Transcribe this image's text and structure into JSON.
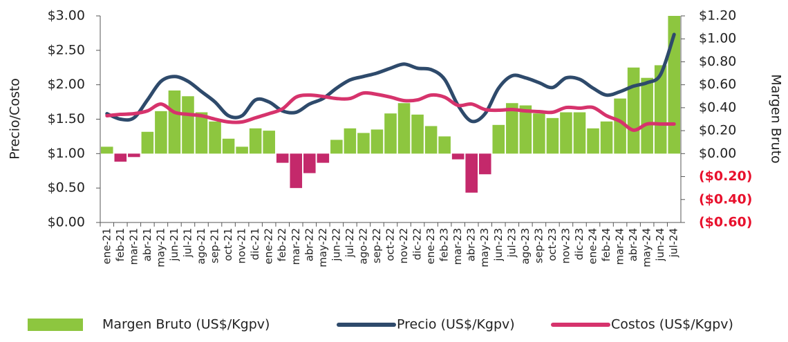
{
  "chart_data": {
    "type": "combo",
    "y_label": "Precio/Costo",
    "y2_label": "Margen Bruto",
    "categories": [
      "ene-21",
      "feb-21",
      "mar-21",
      "abr-21",
      "may-21",
      "jun-21",
      "jul-21",
      "ago-21",
      "sep-21",
      "oct-21",
      "nov-21",
      "dic-21",
      "ene-22",
      "feb-22",
      "mar-22",
      "abr-22",
      "may-22",
      "jun-22",
      "jul-22",
      "ago-22",
      "sep-22",
      "oct-22",
      "nov-22",
      "dic-22",
      "ene-23",
      "feb-23",
      "mar-23",
      "abr-23",
      "may-23",
      "jun-23",
      "jul-23",
      "ago-23",
      "sep-23",
      "oct-23",
      "nov-23",
      "dic-23",
      "ene-24",
      "feb-24",
      "mar-24",
      "abr-24",
      "may-24",
      "jun-24",
      "jul-24"
    ],
    "series": [
      {
        "name": "Margen Bruto (US$/Kgpv)",
        "type": "bar",
        "axis": "y2",
        "color": "#8dc63f",
        "negative_color": "#c4296b",
        "values": [
          0.06,
          -0.07,
          -0.03,
          0.19,
          0.37,
          0.55,
          0.5,
          0.36,
          0.28,
          0.13,
          0.06,
          0.22,
          0.2,
          -0.08,
          -0.3,
          -0.17,
          -0.08,
          0.12,
          0.22,
          0.18,
          0.21,
          0.35,
          0.44,
          0.34,
          0.24,
          0.15,
          -0.05,
          -0.34,
          -0.18,
          0.25,
          0.44,
          0.42,
          0.35,
          0.31,
          0.36,
          0.36,
          0.22,
          0.28,
          0.48,
          0.75,
          0.66,
          0.77,
          1.2
        ]
      },
      {
        "name": "Precio (US$/Kgpv)",
        "type": "line",
        "color": "#2e4a6b",
        "values": [
          1.58,
          1.5,
          1.52,
          1.78,
          2.05,
          2.12,
          2.05,
          1.9,
          1.75,
          1.55,
          1.55,
          1.78,
          1.75,
          1.62,
          1.6,
          1.72,
          1.8,
          1.95,
          2.07,
          2.12,
          2.17,
          2.24,
          2.3,
          2.24,
          2.22,
          2.08,
          1.7,
          1.47,
          1.58,
          1.95,
          2.13,
          2.1,
          2.03,
          1.96,
          2.1,
          2.08,
          1.95,
          1.85,
          1.9,
          1.98,
          2.03,
          2.15,
          2.73
        ]
      },
      {
        "name": "Costos (US$/Kgpv)",
        "type": "line",
        "color": "#d6336c",
        "values": [
          1.55,
          1.57,
          1.58,
          1.62,
          1.72,
          1.6,
          1.57,
          1.55,
          1.5,
          1.46,
          1.46,
          1.52,
          1.58,
          1.65,
          1.82,
          1.85,
          1.83,
          1.8,
          1.8,
          1.88,
          1.86,
          1.82,
          1.77,
          1.78,
          1.85,
          1.82,
          1.7,
          1.72,
          1.64,
          1.63,
          1.64,
          1.62,
          1.61,
          1.6,
          1.67,
          1.66,
          1.67,
          1.55,
          1.47,
          1.34,
          1.43,
          1.43,
          1.43
        ]
      }
    ],
    "ylim": [
      0,
      3
    ],
    "yticks": [
      {
        "value": 0,
        "label": "$0.00"
      },
      {
        "value": 0.5,
        "label": "$0.50"
      },
      {
        "value": 1,
        "label": "$1.00"
      },
      {
        "value": 1.5,
        "label": "$1.50"
      },
      {
        "value": 2,
        "label": "$2.00"
      },
      {
        "value": 2.5,
        "label": "$2.50"
      },
      {
        "value": 3,
        "label": "$3.00"
      }
    ],
    "y2lim": [
      -0.6,
      1.2
    ],
    "y2ticks": [
      {
        "value": -0.6,
        "label": "($0.60)"
      },
      {
        "value": -0.4,
        "label": "($0.40)"
      },
      {
        "value": -0.2,
        "label": "($0.20)"
      },
      {
        "value": 0,
        "label": "$0.00"
      },
      {
        "value": 0.2,
        "label": "$0.20"
      },
      {
        "value": 0.4,
        "label": "$0.40"
      },
      {
        "value": 0.6,
        "label": "$0.60"
      },
      {
        "value": 0.8,
        "label": "$0.80"
      },
      {
        "value": 1,
        "label": "$1.00"
      },
      {
        "value": 1.2,
        "label": "$1.20"
      }
    ],
    "negative_label_color": "#e8112d",
    "legend": "bottom"
  }
}
